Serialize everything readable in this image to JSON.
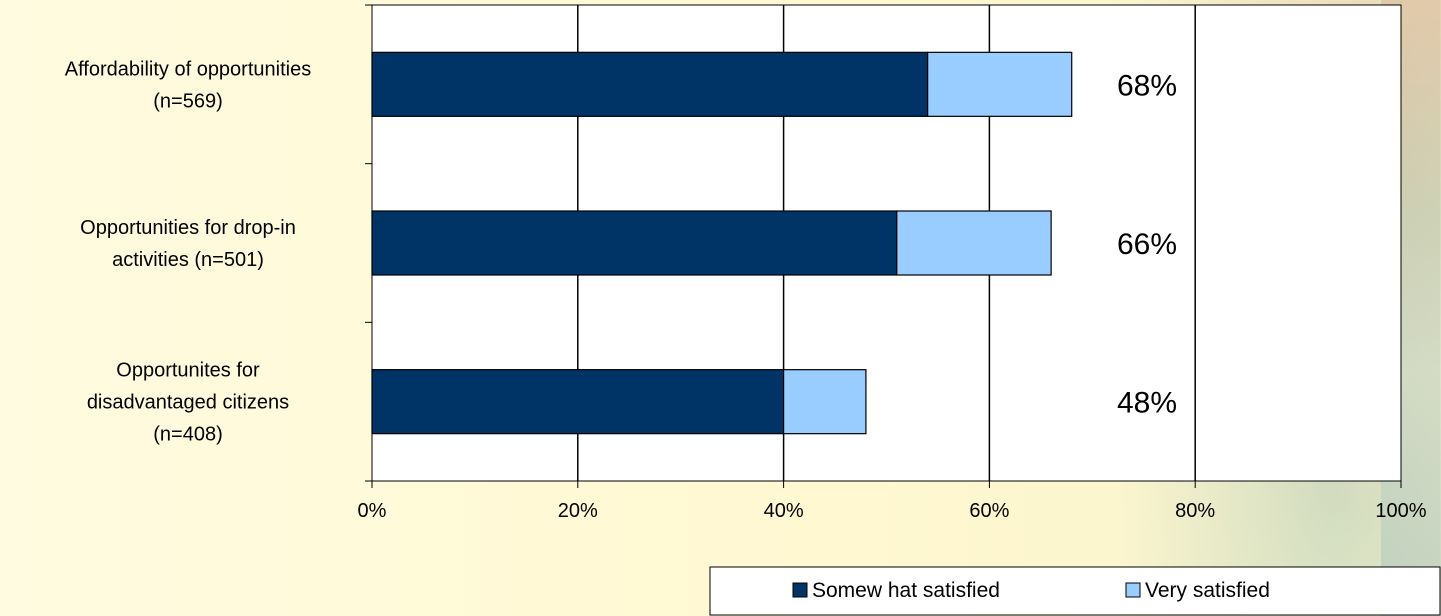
{
  "chart_data": {
    "type": "bar",
    "orientation": "horizontal",
    "stacked": true,
    "categories": [
      [
        "Affordability of opportunities",
        "(n=569)"
      ],
      [
        "Opportunities for drop-in",
        "activities (n=501)"
      ],
      [
        "Opportunites for",
        "disadvantaged citizens",
        "(n=408)"
      ]
    ],
    "series": [
      {
        "name": "Somew hat satisfied",
        "values": [
          54,
          51,
          40
        ],
        "color": "#003366"
      },
      {
        "name": "Very satisfied",
        "values": [
          14,
          15,
          8
        ],
        "color": "#99ccff"
      }
    ],
    "data_labels": [
      "68%",
      "66%",
      "48%"
    ],
    "x_ticks": [
      "0%",
      "20%",
      "40%",
      "60%",
      "80%",
      "100%"
    ],
    "xlim": [
      0,
      100
    ],
    "grid": true,
    "legend_position": "bottom-right"
  }
}
